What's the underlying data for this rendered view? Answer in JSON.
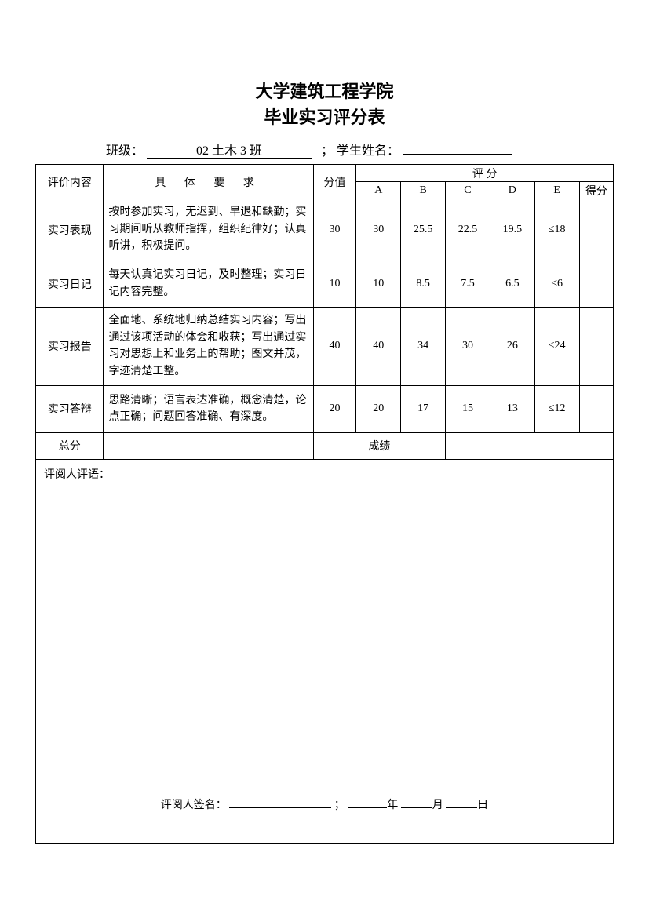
{
  "title": {
    "line1": "大学建筑工程学院",
    "line2": "毕业实习评分表"
  },
  "info": {
    "class_label": "班级：",
    "class_value": "02 土木 3 班",
    "sep": "；",
    "name_label": "学生姓名：",
    "name_value": ""
  },
  "headers": {
    "category": "评价内容",
    "requirement": "具 体 要 求",
    "score": "分值",
    "grading_group": "评    分",
    "A": "A",
    "B": "B",
    "C": "C",
    "D": "D",
    "E": "E",
    "got": "得分"
  },
  "rows": [
    {
      "category": "实习表现",
      "requirement": "按时参加实习，无迟到、早退和缺勤；实习期间听从教师指挥，组织纪律好；认真听讲，积极提问。",
      "score": "30",
      "A": "30",
      "B": "25.5",
      "C": "22.5",
      "D": "19.5",
      "E": "≤18",
      "got": ""
    },
    {
      "category": "实习日记",
      "requirement": "每天认真记实习日记，及时整理；实习日记内容完整。",
      "score": "10",
      "A": "10",
      "B": "8.5",
      "C": "7.5",
      "D": "6.5",
      "E": "≤6",
      "got": ""
    },
    {
      "category": "实习报告",
      "requirement": "全面地、系统地归纳总结实习内容；写出通过该项活动的体会和收获；写出通过实习对思想上和业务上的帮助；图文并茂，字迹清楚工整。",
      "score": "40",
      "A": "40",
      "B": "34",
      "C": "30",
      "D": "26",
      "E": "≤24",
      "got": ""
    },
    {
      "category": "实习答辩",
      "requirement": "思路清晰；语言表达准确，概念清楚，论点正确；问题回答准确、有深度。",
      "score": "20",
      "A": "20",
      "B": "17",
      "C": "15",
      "D": "13",
      "E": "≤12",
      "got": ""
    }
  ],
  "totals": {
    "total_label": "总分",
    "total_value": "",
    "result_label": "成绩",
    "result_value": ""
  },
  "comments": {
    "label": "评阅人评语：",
    "signature_label": "评阅人签名：",
    "sep": "；",
    "year_suffix": "年",
    "month_suffix": "月",
    "day_suffix": "日"
  }
}
